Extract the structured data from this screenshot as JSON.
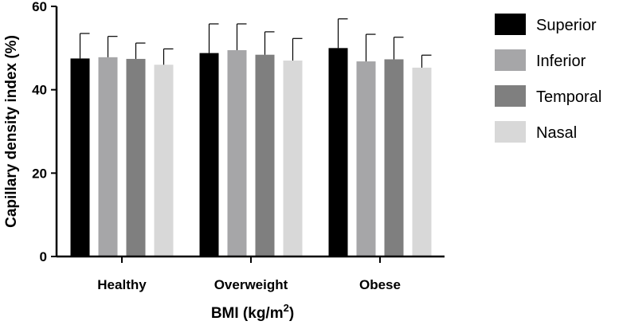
{
  "chart_data": {
    "type": "bar",
    "categories": [
      "Healthy",
      "Overweight",
      "Obese"
    ],
    "series": [
      {
        "name": "Superior",
        "color": "#000000",
        "values": [
          47.5,
          48.8,
          50.0
        ],
        "errors": [
          6.0,
          7.0,
          7.0
        ]
      },
      {
        "name": "Inferior",
        "color": "#a6a6a8",
        "values": [
          47.8,
          49.5,
          46.8
        ],
        "errors": [
          5.0,
          6.3,
          6.5
        ]
      },
      {
        "name": "Temporal",
        "color": "#7f7f7f",
        "values": [
          47.4,
          48.4,
          47.3
        ],
        "errors": [
          3.8,
          5.5,
          5.3
        ]
      },
      {
        "name": "Nasal",
        "color": "#d8d8d8",
        "values": [
          46.0,
          47.0,
          45.3
        ],
        "errors": [
          3.8,
          5.3,
          3.0
        ]
      }
    ],
    "y_ticks": [
      "0",
      "20",
      "40",
      "60"
    ],
    "ylim": [
      0,
      60
    ],
    "xlabel": "BMI (kg/m",
    "xlabel_superscript": "2",
    "xlabel_close": ")",
    "ylabel": "Capillary density index (%)",
    "legend_position": "right",
    "grid": false
  }
}
